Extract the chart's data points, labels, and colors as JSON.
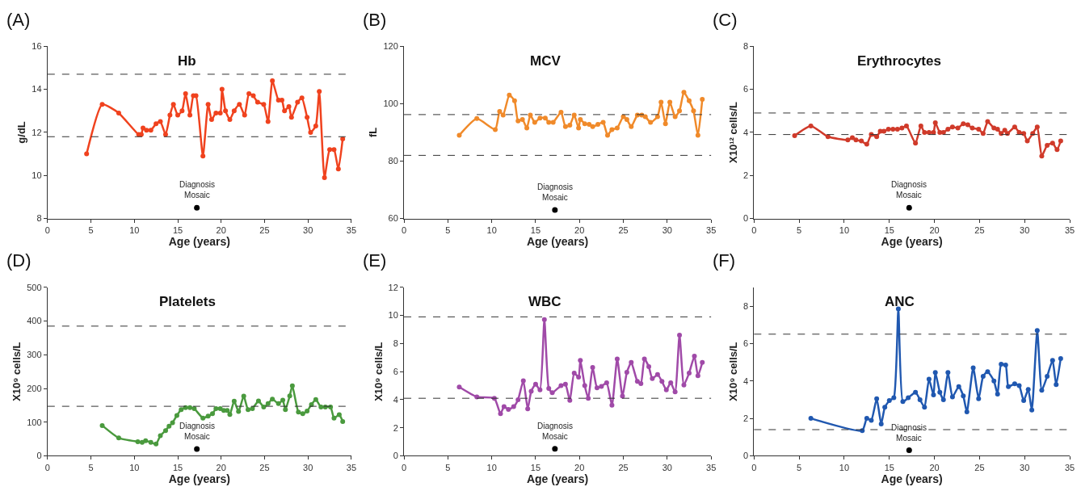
{
  "chart_data": [
    {
      "type": "line",
      "title": "Hb",
      "xlabel": "Age (years)",
      "ylabel": "g/dL",
      "xlim": [
        0,
        35
      ],
      "xticks": [
        0,
        5,
        10,
        15,
        20,
        25,
        30,
        35
      ],
      "ylim": [
        8,
        16
      ],
      "yticks": [
        8,
        10,
        12,
        14,
        16
      ],
      "marker": "circle",
      "line_style": "solid",
      "annotations": [
        "(A)",
        "Diagnosis\nMosaic"
      ],
      "ref_lines": [
        {
          "axis": "y",
          "value": 14.7,
          "line_style": "dashed",
          "color": "#333333"
        },
        {
          "axis": "y",
          "value": 11.8,
          "line_style": "dashed",
          "color": "#333333"
        }
      ],
      "series": [
        {
          "color": "#f0421e",
          "x": [
            4.5,
            6.3,
            8.2,
            10.5,
            10.8,
            11.0,
            11.4,
            11.9,
            12.5,
            13.0,
            13.6,
            14.1,
            14.5,
            15.0,
            15.5,
            15.9,
            16.4,
            16.8,
            17.1,
            17.9,
            18.5,
            18.9,
            19.4,
            19.9,
            20.1,
            20.5,
            21.0,
            21.5,
            22.1,
            22.7,
            23.2,
            23.7,
            24.2,
            24.9,
            25.4,
            25.9,
            26.6,
            27.0,
            27.3,
            27.8,
            28.1,
            28.8,
            29.3,
            29.9,
            30.3,
            30.9,
            31.3,
            31.9,
            32.5,
            33.0,
            33.5,
            34.0
          ],
          "values": [
            11.0,
            13.3,
            12.9,
            11.9,
            11.9,
            12.2,
            12.1,
            12.1,
            12.4,
            12.5,
            11.9,
            12.8,
            13.3,
            12.8,
            13.0,
            13.8,
            12.8,
            13.7,
            13.7,
            10.9,
            13.3,
            12.6,
            12.9,
            12.9,
            14.0,
            13.0,
            12.6,
            13.0,
            13.3,
            12.8,
            13.8,
            13.7,
            13.4,
            13.3,
            12.5,
            14.4,
            13.5,
            13.5,
            13.0,
            13.2,
            12.7,
            13.4,
            13.6,
            12.7,
            12.0,
            12.3,
            13.9,
            9.9,
            11.2,
            11.2,
            10.3,
            11.7
          ]
        },
        {
          "type": "scatter",
          "color": "#000000",
          "x": [
            17.2
          ],
          "values": [
            8.5
          ]
        }
      ]
    },
    {
      "type": "line",
      "title": "MCV",
      "xlabel": "Age (years)",
      "ylabel": "fL",
      "xlim": [
        0,
        35
      ],
      "xticks": [
        0,
        5,
        10,
        15,
        20,
        25,
        30,
        35
      ],
      "ylim": [
        60,
        120
      ],
      "yticks": [
        60,
        80,
        100,
        120
      ],
      "marker": "circle",
      "line_style": "solid",
      "annotations": [
        "(B)",
        "Diagnosis\nMosaic"
      ],
      "ref_lines": [
        {
          "axis": "y",
          "value": 96.2,
          "line_style": "dashed",
          "color": "#333333"
        },
        {
          "axis": "y",
          "value": 82,
          "line_style": "dashed",
          "color": "#333333"
        }
      ],
      "series": [
        {
          "color": "#f08a2a",
          "x": [
            6.3,
            8.3,
            10.4,
            10.9,
            11.3,
            12.0,
            12.6,
            13.0,
            13.5,
            14.0,
            14.4,
            14.9,
            15.5,
            16.1,
            16.5,
            17.0,
            17.9,
            18.4,
            18.9,
            19.4,
            19.9,
            20.1,
            20.6,
            21.1,
            21.5,
            22.1,
            22.7,
            23.2,
            23.7,
            24.3,
            25.0,
            25.4,
            25.9,
            26.6,
            27.1,
            27.5,
            28.1,
            28.9,
            29.3,
            29.8,
            30.3,
            30.9,
            31.4,
            31.9,
            32.5,
            33.0,
            33.5,
            34.0
          ],
          "values": [
            89,
            94.8,
            91,
            97.3,
            96,
            103,
            101,
            94,
            94.5,
            91.5,
            96,
            93.5,
            95,
            95,
            93.5,
            93.5,
            97,
            92,
            92.5,
            96,
            91.5,
            94.5,
            93,
            92.8,
            92,
            92.8,
            93.5,
            89,
            91,
            91.5,
            95.5,
            94.5,
            92,
            96,
            96,
            95.5,
            93.5,
            95.5,
            100.5,
            93,
            100.5,
            95.5,
            97.5,
            104,
            101,
            97.5,
            89,
            101.5
          ]
        },
        {
          "type": "scatter",
          "color": "#000000",
          "x": [
            17.2
          ],
          "values": [
            63
          ]
        }
      ]
    },
    {
      "type": "line",
      "title": "Erythrocytes",
      "xlabel": "Age (years)",
      "ylabel": "X10¹² cells/L",
      "xlim": [
        0,
        35
      ],
      "xticks": [
        0,
        5,
        10,
        15,
        20,
        25,
        30,
        35
      ],
      "ylim": [
        0,
        8
      ],
      "yticks": [
        0,
        2,
        4,
        6,
        8
      ],
      "marker": "circle",
      "line_style": "solid",
      "annotations": [
        "(C)",
        "Diagnosis\nMosaic"
      ],
      "ref_lines": [
        {
          "axis": "y",
          "value": 4.9,
          "line_style": "dashed",
          "color": "#333333"
        },
        {
          "axis": "y",
          "value": 3.9,
          "line_style": "dashed",
          "color": "#333333"
        }
      ],
      "series": [
        {
          "color": "#d03a2a",
          "x": [
            4.5,
            6.3,
            8.2,
            10.4,
            10.9,
            11.3,
            11.9,
            12.5,
            13.0,
            13.6,
            14.0,
            14.4,
            14.9,
            15.4,
            15.9,
            16.4,
            16.9,
            17.9,
            18.5,
            18.9,
            19.4,
            19.9,
            20.1,
            20.6,
            21.0,
            21.5,
            22.0,
            22.6,
            23.2,
            23.7,
            24.2,
            24.9,
            25.4,
            25.9,
            26.6,
            27.0,
            27.4,
            27.8,
            28.1,
            28.9,
            29.4,
            29.9,
            30.3,
            30.9,
            31.4,
            31.9,
            32.5,
            33.1,
            33.6,
            34.0
          ],
          "values": [
            3.85,
            4.3,
            3.8,
            3.65,
            3.75,
            3.65,
            3.6,
            3.45,
            3.9,
            3.8,
            4.05,
            4.05,
            4.15,
            4.15,
            4.15,
            4.2,
            4.3,
            3.5,
            4.3,
            4.0,
            4.0,
            4.0,
            4.45,
            4.0,
            4.0,
            4.15,
            4.25,
            4.2,
            4.4,
            4.35,
            4.2,
            4.15,
            3.95,
            4.5,
            4.2,
            4.15,
            3.95,
            4.1,
            3.95,
            4.25,
            4.0,
            3.95,
            3.6,
            3.95,
            4.25,
            2.9,
            3.4,
            3.5,
            3.2,
            3.6
          ]
        },
        {
          "type": "scatter",
          "color": "#000000",
          "x": [
            17.2
          ],
          "values": [
            0.5
          ]
        }
      ]
    },
    {
      "type": "line",
      "title": "Platelets",
      "xlabel": "Age (years)",
      "ylabel": "X10⁹ cells/L",
      "xlim": [
        0,
        35
      ],
      "xticks": [
        0,
        5,
        10,
        15,
        20,
        25,
        30,
        35
      ],
      "ylim": [
        0,
        500
      ],
      "yticks": [
        0,
        100,
        200,
        300,
        400,
        500
      ],
      "marker": "circle",
      "line_style": "solid",
      "annotations": [
        "(D)",
        "Diagnosis\nMosaic"
      ],
      "ref_lines": [
        {
          "axis": "y",
          "value": 385,
          "line_style": "dashed",
          "color": "#333333"
        },
        {
          "axis": "y",
          "value": 147,
          "line_style": "dashed",
          "color": "#333333"
        }
      ],
      "series": [
        {
          "color": "#4a9a3e",
          "x": [
            6.3,
            8.2,
            10.4,
            10.9,
            11.3,
            11.9,
            12.5,
            13.0,
            13.6,
            14.0,
            14.4,
            14.9,
            15.4,
            15.9,
            16.4,
            16.9,
            17.9,
            18.5,
            19.0,
            19.4,
            19.9,
            20.3,
            20.7,
            21.0,
            21.5,
            22.0,
            22.6,
            23.1,
            23.6,
            24.3,
            24.9,
            25.4,
            25.9,
            26.6,
            27.1,
            27.4,
            27.9,
            28.2,
            28.9,
            29.4,
            29.9,
            30.4,
            30.9,
            31.5,
            32.0,
            32.6,
            33.0,
            33.6,
            34.0
          ],
          "values": [
            90,
            53,
            42,
            40,
            45,
            40,
            35,
            60,
            75,
            88,
            98,
            120,
            137,
            143,
            143,
            140,
            112,
            118,
            125,
            140,
            140,
            135,
            135,
            123,
            162,
            132,
            177,
            137,
            140,
            163,
            145,
            155,
            168,
            155,
            165,
            137,
            178,
            208,
            130,
            125,
            133,
            152,
            167,
            145,
            145,
            145,
            112,
            122,
            102
          ]
        },
        {
          "type": "scatter",
          "color": "#000000",
          "x": [
            17.2
          ],
          "values": [
            20
          ]
        }
      ]
    },
    {
      "type": "line",
      "title": "WBC",
      "xlabel": "Age (years)",
      "ylabel": "X10⁹ cells/L",
      "xlim": [
        0,
        35
      ],
      "xticks": [
        0,
        5,
        10,
        15,
        20,
        25,
        30,
        35
      ],
      "ylim": [
        0,
        12
      ],
      "yticks": [
        0,
        2,
        4,
        6,
        8,
        10,
        12
      ],
      "marker": "circle",
      "line_style": "solid",
      "annotations": [
        "(E)",
        "Diagnosis\nMosaic"
      ],
      "ref_lines": [
        {
          "axis": "y",
          "value": 9.9,
          "line_style": "dashed",
          "color": "#333333"
        },
        {
          "axis": "y",
          "value": 4.1,
          "line_style": "dashed",
          "color": "#333333"
        }
      ],
      "series": [
        {
          "color": "#a04aa8",
          "x": [
            6.3,
            8.3,
            10.3,
            11.0,
            11.4,
            11.9,
            12.5,
            13.0,
            13.6,
            14.1,
            14.5,
            15.0,
            15.5,
            16.0,
            16.5,
            16.9,
            17.9,
            18.4,
            18.9,
            19.4,
            19.9,
            20.1,
            20.6,
            21.0,
            21.5,
            22.0,
            22.5,
            23.1,
            23.7,
            24.3,
            24.9,
            25.4,
            25.9,
            26.6,
            27.0,
            27.4,
            27.9,
            28.3,
            28.9,
            29.4,
            29.9,
            30.4,
            30.9,
            31.4,
            31.9,
            32.5,
            33.1,
            33.5,
            34.0
          ],
          "values": [
            4.9,
            4.2,
            4.1,
            3.0,
            3.5,
            3.3,
            3.5,
            4.0,
            5.35,
            3.35,
            4.6,
            5.1,
            4.7,
            9.7,
            4.8,
            4.5,
            5.0,
            5.1,
            3.95,
            5.9,
            5.6,
            6.8,
            5.0,
            4.1,
            6.3,
            4.85,
            4.95,
            5.2,
            3.6,
            6.9,
            4.25,
            5.95,
            6.65,
            5.3,
            5.15,
            6.9,
            6.35,
            5.5,
            5.8,
            5.3,
            4.7,
            5.2,
            4.55,
            8.6,
            5.05,
            5.9,
            7.1,
            5.7,
            6.65
          ]
        },
        {
          "type": "scatter",
          "color": "#000000",
          "x": [
            17.2
          ],
          "values": [
            0.5
          ]
        }
      ]
    },
    {
      "type": "line",
      "title": "ANC",
      "xlabel": "Age (years)",
      "ylabel": "X10⁹ cells/L",
      "xlim": [
        0,
        35
      ],
      "xticks": [
        0,
        5,
        10,
        15,
        20,
        25,
        30,
        35
      ],
      "ylim": [
        0,
        9
      ],
      "yticks": [
        0,
        2,
        4,
        6,
        8
      ],
      "marker": "circle",
      "line_style": "solid",
      "annotations": [
        "(F)",
        "Diagnosis\nMosaic"
      ],
      "ref_lines": [
        {
          "axis": "y",
          "value": 6.5,
          "line_style": "dashed",
          "color": "#333333"
        },
        {
          "axis": "y",
          "value": 1.4,
          "line_style": "dashed",
          "color": "#333333"
        }
      ],
      "series": [
        {
          "color": "#2058b0",
          "x": [
            6.3,
            12.0,
            12.5,
            13.0,
            13.6,
            14.1,
            14.5,
            15.0,
            15.5,
            16.0,
            16.5,
            17.1,
            17.9,
            18.4,
            18.9,
            19.4,
            19.9,
            20.1,
            20.6,
            21.0,
            21.5,
            22.0,
            22.7,
            23.2,
            23.6,
            24.3,
            24.9,
            25.4,
            25.9,
            26.6,
            27.0,
            27.4,
            27.9,
            28.2,
            28.9,
            29.4,
            29.9,
            30.4,
            30.8,
            31.4,
            31.9,
            32.5,
            33.1,
            33.5,
            34.0
          ],
          "values": [
            2.0,
            1.35,
            2.0,
            1.9,
            3.05,
            1.7,
            2.6,
            2.95,
            3.1,
            7.85,
            2.9,
            3.1,
            3.4,
            3.0,
            2.6,
            4.1,
            3.25,
            4.45,
            3.4,
            3.0,
            4.45,
            3.15,
            3.7,
            3.2,
            2.35,
            4.7,
            3.05,
            4.25,
            4.5,
            4.0,
            3.3,
            4.9,
            4.85,
            3.7,
            3.85,
            3.75,
            2.95,
            3.55,
            2.45,
            6.7,
            3.5,
            4.25,
            5.1,
            3.8,
            5.2
          ]
        },
        {
          "type": "scatter",
          "color": "#000000",
          "x": [
            17.2
          ],
          "values": [
            0.3
          ]
        }
      ]
    }
  ]
}
